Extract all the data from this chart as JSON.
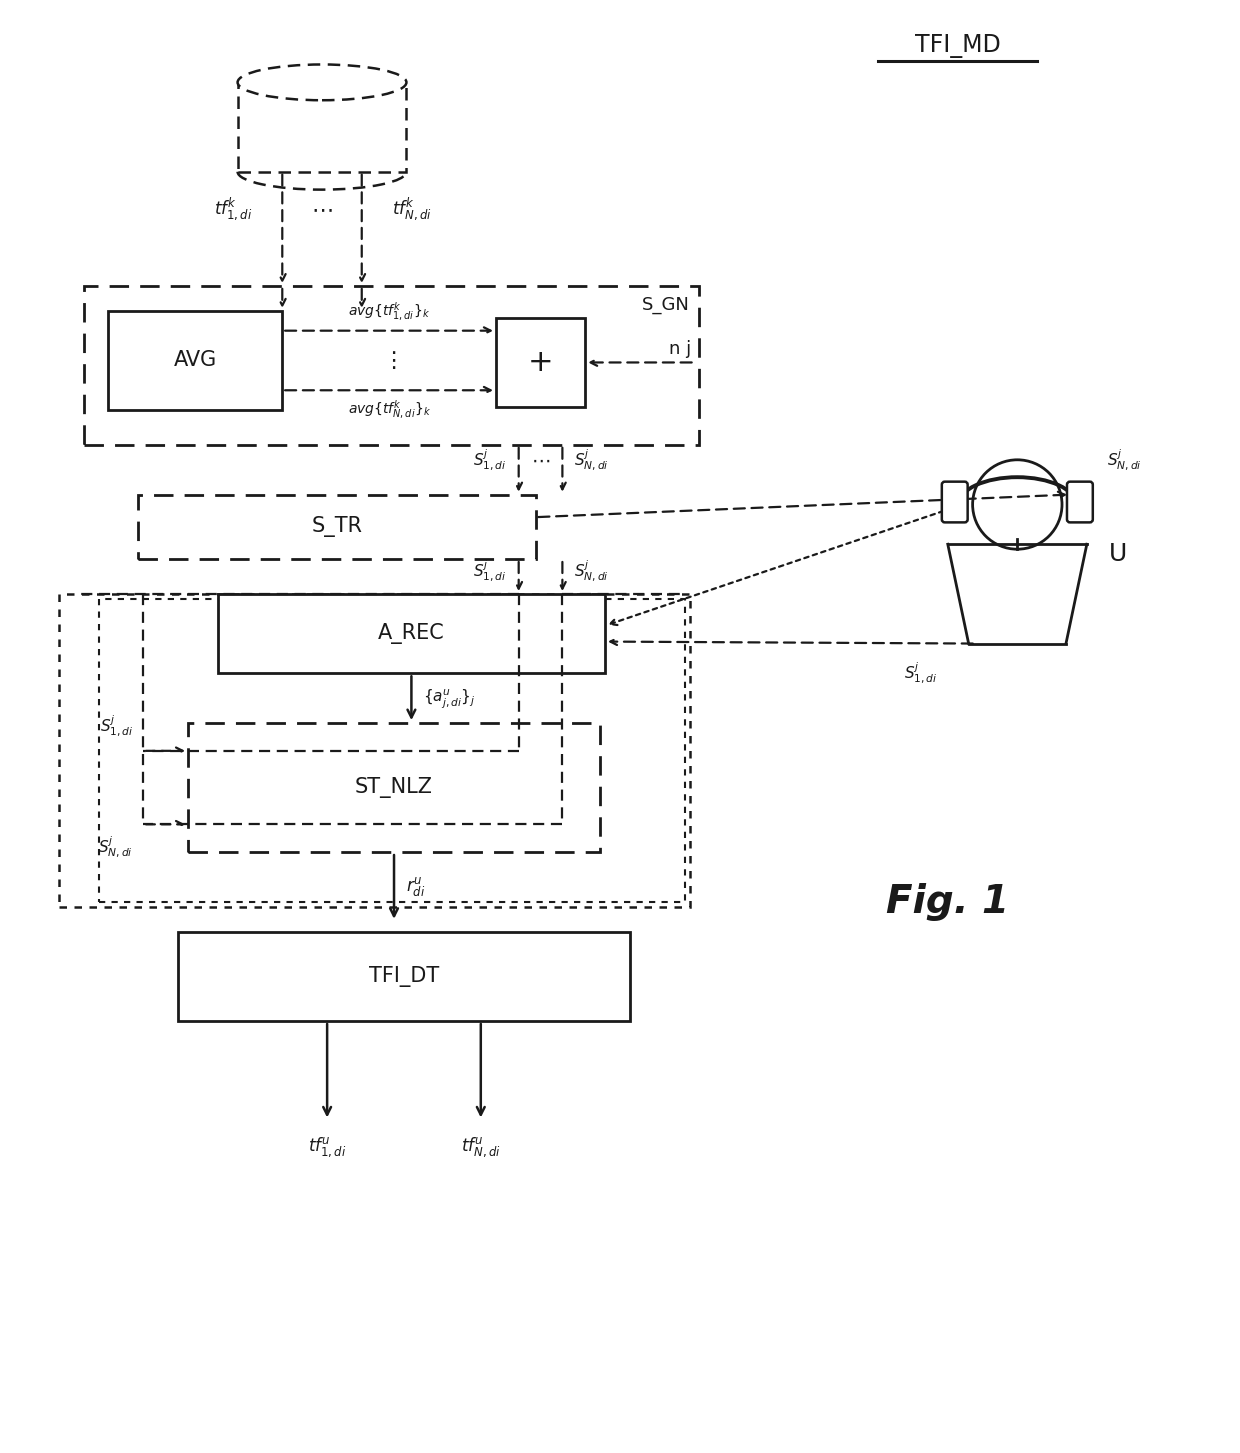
{
  "fig_width": 12.4,
  "fig_height": 14.53,
  "dpi": 100,
  "bg_color": "#ffffff",
  "lc": "#1a1a1a",
  "tfi_md_label": "TFI_MD",
  "fig_label": "Fig. 1",
  "labels": {
    "tf_bdd": "tf_bdd",
    "avg": "AVG",
    "plus": "+",
    "s_gn": "S_GN",
    "s_tr": "S_TR",
    "a_rec": "A_REC",
    "st_nlz": "ST_NLZ",
    "tfi_dt": "TFI_DT",
    "user": "U",
    "nj": "n j",
    "tf1k": "$tf_{1,di}^{k}$",
    "tfNk": "$tf_{N,di}^{k}$",
    "avg1k": "$avg\\{tf_{1,di}^{k}\\}_{k}$",
    "avgNk": "$avg\\{tf_{N,di}^{k}\\}_{k}$",
    "S1j": "$S_{1,di}^{j}$",
    "SNj": "$S_{N,di}^{j}$",
    "aju": "$\\{a_{j,di}^{u}\\}_{j}$",
    "rdu": "$r_{di}^{u}$",
    "tf1u": "$tf_{1,di}^{u}$",
    "tfNu": "$tf_{N,di}^{u}$",
    "dots_h": "$\\cdots$",
    "dots_v": "$\\vdots$"
  }
}
